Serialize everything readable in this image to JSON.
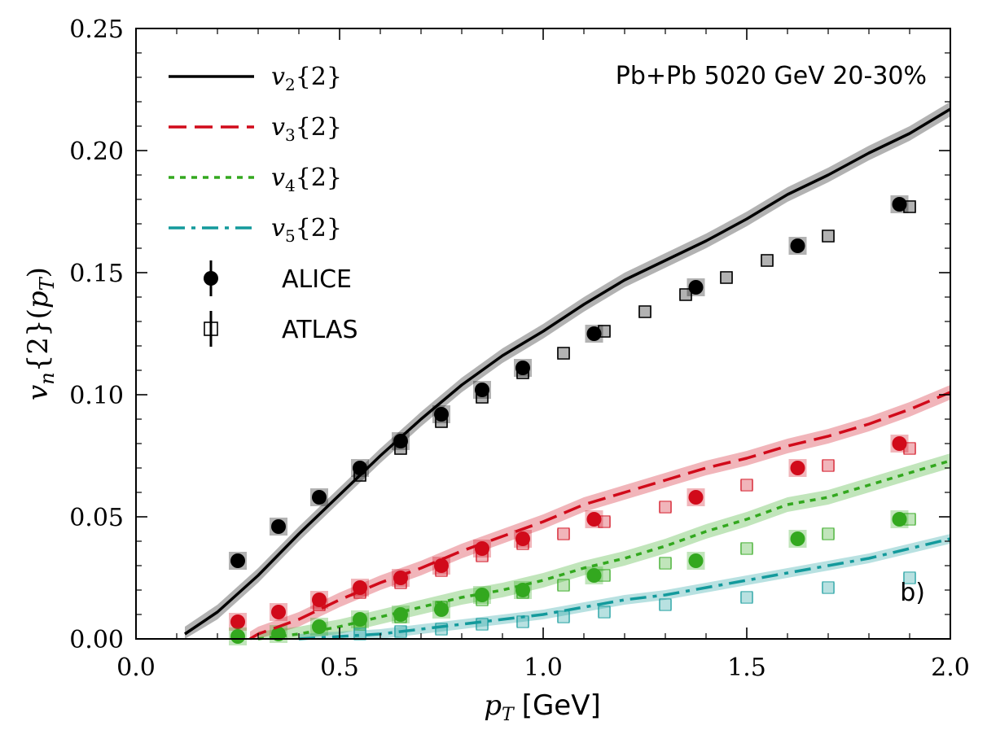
{
  "chart_data": {
    "type": "line",
    "annotation": "Pb+Pb 5020 GeV 20-30%",
    "panel_label": "b)",
    "xlabel_math": "p",
    "xlabel_sub": "T",
    "xlabel_unit": "[GeV]",
    "ylabel": "v_n{2}(p_T)",
    "xlim": [
      0.0,
      2.0
    ],
    "ylim": [
      0.0,
      0.25
    ],
    "x_ticks": [
      0.0,
      0.5,
      1.0,
      1.5,
      2.0
    ],
    "x_tick_labels": [
      "0.0",
      "0.5",
      "1.0",
      "1.5",
      "2.0"
    ],
    "y_ticks": [
      0.0,
      0.05,
      0.1,
      0.15,
      0.2,
      0.25
    ],
    "y_tick_labels": [
      "0.00",
      "0.05",
      "0.10",
      "0.15",
      "0.20",
      "0.25"
    ],
    "colors": {
      "v2": "#000000",
      "v3": "#d10a1a",
      "v4": "#33a81f",
      "v5": "#139a9c"
    },
    "legend": [
      {
        "label": "v2{2}",
        "base": "v",
        "sub": "2",
        "tail": "{2}",
        "style": "solid",
        "color": "#000000"
      },
      {
        "label": "v3{2}",
        "base": "v",
        "sub": "3",
        "tail": "{2}",
        "style": "dashed",
        "color": "#d10a1a"
      },
      {
        "label": "v4{2}",
        "base": "v",
        "sub": "4",
        "tail": "{2}",
        "style": "dotted",
        "color": "#33a81f"
      },
      {
        "label": "v5{2}",
        "base": "v",
        "sub": "5",
        "tail": "{2}",
        "style": "dashdot",
        "color": "#139a9c"
      },
      {
        "label": "ALICE",
        "style": "filled-circle",
        "color": "#000000"
      },
      {
        "label": "ATLAS",
        "style": "open-square",
        "color": "#000000"
      }
    ],
    "model_series": [
      {
        "name": "v2{2}",
        "key": "v2",
        "x": [
          0.12,
          0.2,
          0.3,
          0.4,
          0.5,
          0.6,
          0.7,
          0.8,
          0.9,
          1.0,
          1.1,
          1.2,
          1.3,
          1.4,
          1.5,
          1.6,
          1.7,
          1.8,
          1.9,
          2.0
        ],
        "y": [
          0.002,
          0.011,
          0.026,
          0.043,
          0.059,
          0.075,
          0.09,
          0.104,
          0.116,
          0.126,
          0.137,
          0.147,
          0.155,
          0.163,
          0.172,
          0.182,
          0.19,
          0.199,
          0.207,
          0.217
        ],
        "band": 0.003
      },
      {
        "name": "v3{2}",
        "key": "v3",
        "x": [
          0.28,
          0.3,
          0.4,
          0.5,
          0.6,
          0.7,
          0.8,
          0.9,
          1.0,
          1.1,
          1.2,
          1.3,
          1.4,
          1.5,
          1.6,
          1.7,
          1.8,
          1.9,
          2.0
        ],
        "y": [
          0.0,
          0.002,
          0.008,
          0.016,
          0.023,
          0.029,
          0.036,
          0.042,
          0.048,
          0.055,
          0.06,
          0.065,
          0.07,
          0.074,
          0.079,
          0.083,
          0.088,
          0.094,
          0.101
        ],
        "band": 0.003
      },
      {
        "name": "v4{2}",
        "key": "v4",
        "x": [
          0.3,
          0.4,
          0.5,
          0.6,
          0.7,
          0.8,
          0.9,
          1.0,
          1.1,
          1.2,
          1.3,
          1.4,
          1.5,
          1.6,
          1.7,
          1.8,
          1.9,
          2.0
        ],
        "y": [
          0.0,
          0.002,
          0.005,
          0.009,
          0.013,
          0.017,
          0.02,
          0.024,
          0.029,
          0.033,
          0.038,
          0.044,
          0.049,
          0.055,
          0.058,
          0.063,
          0.068,
          0.073
        ],
        "band": 0.003
      },
      {
        "name": "v5{2}",
        "key": "v5",
        "x": [
          0.4,
          0.5,
          0.6,
          0.7,
          0.8,
          0.9,
          1.0,
          1.1,
          1.2,
          1.3,
          1.4,
          1.5,
          1.6,
          1.7,
          1.8,
          1.9,
          2.0
        ],
        "y": [
          0.0,
          0.001,
          0.002,
          0.004,
          0.006,
          0.008,
          0.01,
          0.013,
          0.016,
          0.018,
          0.021,
          0.024,
          0.027,
          0.03,
          0.033,
          0.037,
          0.041
        ],
        "band": 0.002
      }
    ],
    "alice": [
      {
        "key": "v2",
        "x": [
          0.25,
          0.35,
          0.45,
          0.55,
          0.65,
          0.75,
          0.85,
          0.95,
          1.125,
          1.375,
          1.625,
          1.875
        ],
        "y": [
          0.032,
          0.046,
          0.058,
          0.07,
          0.081,
          0.092,
          0.102,
          0.111,
          0.125,
          0.144,
          0.161,
          0.178
        ]
      },
      {
        "key": "v3",
        "x": [
          0.25,
          0.35,
          0.45,
          0.55,
          0.65,
          0.75,
          0.85,
          0.95,
          1.125,
          1.375,
          1.625,
          1.875
        ],
        "y": [
          0.007,
          0.011,
          0.016,
          0.021,
          0.025,
          0.03,
          0.037,
          0.041,
          0.049,
          0.058,
          0.07,
          0.08
        ]
      },
      {
        "key": "v4",
        "x": [
          0.25,
          0.35,
          0.45,
          0.55,
          0.65,
          0.75,
          0.85,
          0.95,
          1.125,
          1.375,
          1.625,
          1.875
        ],
        "y": [
          0.001,
          0.002,
          0.005,
          0.008,
          0.01,
          0.012,
          0.018,
          0.02,
          0.026,
          0.032,
          0.041,
          0.049
        ]
      }
    ],
    "atlas": [
      {
        "key": "v2",
        "x": [
          0.55,
          0.65,
          0.75,
          0.85,
          0.95,
          1.05,
          1.15,
          1.25,
          1.35,
          1.45,
          1.55,
          1.7,
          1.9
        ],
        "y": [
          0.067,
          0.078,
          0.089,
          0.099,
          0.109,
          0.117,
          0.126,
          0.134,
          0.141,
          0.148,
          0.155,
          0.165,
          0.177
        ]
      },
      {
        "key": "v3",
        "x": [
          0.45,
          0.55,
          0.65,
          0.75,
          0.85,
          0.95,
          1.05,
          1.15,
          1.3,
          1.5,
          1.7,
          1.9
        ],
        "y": [
          0.014,
          0.019,
          0.023,
          0.028,
          0.034,
          0.039,
          0.043,
          0.048,
          0.054,
          0.063,
          0.071,
          0.078
        ]
      },
      {
        "key": "v4",
        "x": [
          0.55,
          0.65,
          0.75,
          0.85,
          0.95,
          1.05,
          1.15,
          1.3,
          1.5,
          1.7,
          1.9
        ],
        "y": [
          0.006,
          0.009,
          0.013,
          0.016,
          0.019,
          0.022,
          0.026,
          0.031,
          0.037,
          0.043,
          0.049
        ]
      },
      {
        "key": "v5",
        "x": [
          0.55,
          0.65,
          0.75,
          0.85,
          0.95,
          1.05,
          1.15,
          1.3,
          1.5,
          1.7,
          1.9
        ],
        "y": [
          0.002,
          0.003,
          0.004,
          0.006,
          0.007,
          0.009,
          0.011,
          0.014,
          0.017,
          0.021,
          0.025
        ]
      }
    ]
  }
}
